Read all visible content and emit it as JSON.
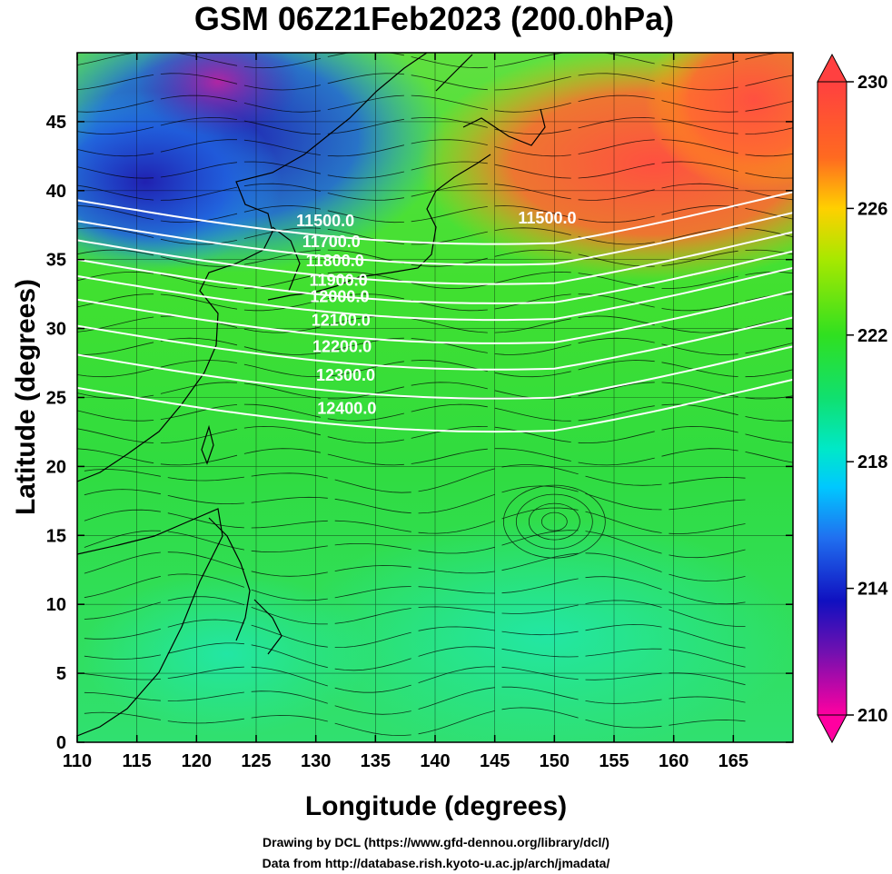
{
  "title": "GSM 06Z21Feb2023 (200.0hPa)",
  "x_axis": {
    "label": "Longitude (degrees)",
    "range": [
      110,
      170
    ],
    "ticks": [
      "110",
      "115",
      "120",
      "125",
      "130",
      "135",
      "140",
      "145",
      "150",
      "155",
      "160",
      "165"
    ]
  },
  "y_axis": {
    "label": "Latitude  (degrees)",
    "range": [
      0,
      50
    ],
    "ticks": [
      "0",
      "5",
      "10",
      "15",
      "20",
      "25",
      "30",
      "35",
      "40",
      "45"
    ]
  },
  "colorbar": {
    "range": [
      210,
      230
    ],
    "labels": [
      "230",
      "226",
      "222",
      "218",
      "214",
      "210"
    ]
  },
  "contours": [
    {
      "label": "11500.0",
      "lon": 130.8,
      "lat": 37.8
    },
    {
      "label": "11500.0",
      "lon": 149.4,
      "lat": 38.0
    },
    {
      "label": "11700.0",
      "lon": 131.3,
      "lat": 36.3
    },
    {
      "label": "11800.0",
      "lon": 131.6,
      "lat": 34.9
    },
    {
      "label": "11900.0",
      "lon": 131.9,
      "lat": 33.5
    },
    {
      "label": "12000.0",
      "lon": 132.0,
      "lat": 32.3
    },
    {
      "label": "12100.0",
      "lon": 132.1,
      "lat": 30.6
    },
    {
      "label": "12200.0",
      "lon": 132.2,
      "lat": 28.7
    },
    {
      "label": "12300.0",
      "lon": 132.5,
      "lat": 26.6
    },
    {
      "label": "12400.0",
      "lon": 132.6,
      "lat": 24.2
    }
  ],
  "credits": [
    "Drawing by DCL (https://www.gfd-dennou.org/library/dcl/)",
    "Data from http://database.rish.kyoto-u.ac.jp/arch/jmadata/"
  ]
}
